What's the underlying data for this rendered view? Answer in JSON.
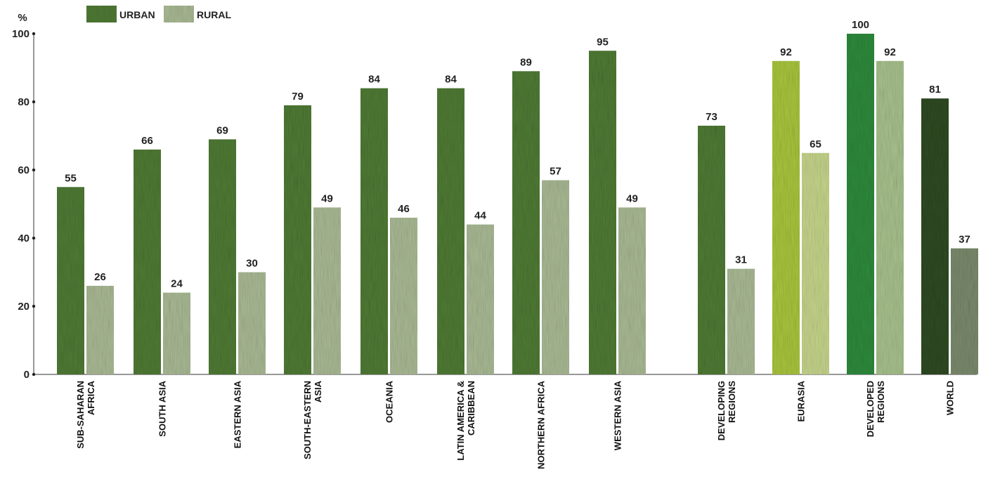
{
  "chart_data": {
    "type": "bar",
    "unit_label": "%",
    "ylim": [
      0,
      100
    ],
    "yticks": [
      0,
      20,
      40,
      60,
      80,
      100
    ],
    "categories": [
      [
        "SUB-SAHARAN",
        "AFRICA"
      ],
      [
        "SOUTH ASIA"
      ],
      [
        "EASTERN ASIA"
      ],
      [
        "SOUTH-EASTERN",
        "ASIA"
      ],
      [
        "OCEANIA"
      ],
      [
        "LATIN AMERICA &",
        "CARIBBEAN"
      ],
      [
        "NORTHERN AFRICA"
      ],
      [
        "WESTERN ASIA"
      ],
      [
        "DEVELOPING",
        "REGIONS"
      ],
      [
        "EURASIA"
      ],
      [
        "DEVELOPED",
        "REGIONS"
      ],
      [
        "WORLD"
      ]
    ],
    "series": [
      {
        "name": "URBAN",
        "values": [
          55,
          66,
          69,
          79,
          84,
          84,
          89,
          95,
          73,
          92,
          100,
          81
        ]
      },
      {
        "name": "RURAL",
        "values": [
          26,
          24,
          30,
          49,
          46,
          44,
          57,
          49,
          31,
          65,
          92,
          37
        ]
      }
    ],
    "legend_position": "top-left",
    "grid": false,
    "colors": {
      "urban": "#4f7a34",
      "rural": "#a9b994",
      "urban_highlight": "#a8c43c",
      "rural_highlight": "#c4d48a",
      "urban_developed": "#2e8a3c",
      "rural_developed": "#a7c08c",
      "urban_world": "#2f4a22",
      "rural_world": "#7a8a6c"
    }
  }
}
